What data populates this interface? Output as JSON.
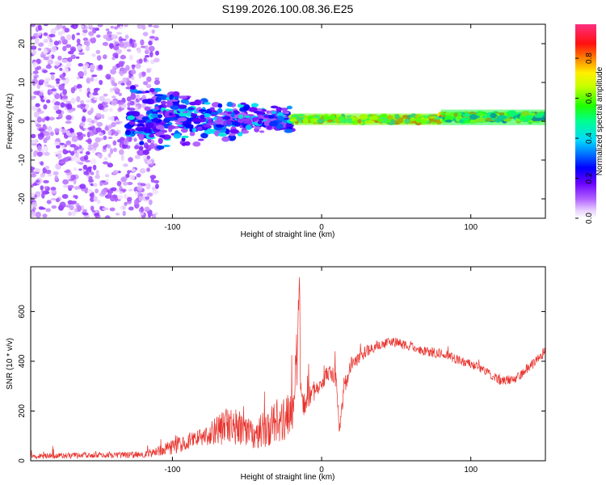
{
  "title": "S199.2026.100.08.36.E25",
  "chart_data": [
    {
      "type": "heatmap",
      "xlabel": "Height of straight line (km)",
      "ylabel": "Frequency (Hz)",
      "xlim": [
        -195,
        150
      ],
      "ylim": [
        -25,
        25
      ],
      "x_ticks": [
        -100,
        0,
        100
      ],
      "x_tick_labels": [
        "-100",
        "0",
        "100"
      ],
      "y_ticks": [
        -20,
        -10,
        0,
        10,
        20
      ],
      "y_tick_labels": [
        "-20",
        "-10",
        "0",
        "10",
        "20"
      ],
      "grid": false,
      "colorbar": {
        "label": "Normalized spectral amplitude",
        "range": [
          0,
          0.97
        ],
        "ticks": [
          0.0,
          0.2,
          0.4,
          0.6,
          0.8
        ],
        "tick_labels": [
          "0.0",
          "0.2",
          "0.4",
          "0.6",
          "0.8"
        ],
        "colormap": "rainbow (white-violet-blue-cyan-green-yellow-red-pink)"
      },
      "regions": [
        {
          "x_range": [
            -195,
            -110
          ],
          "freq_range": [
            -25,
            25
          ],
          "amplitude": [
            0.02,
            0.15
          ],
          "pattern": "scattered broadband"
        },
        {
          "x_range": [
            -130,
            -20
          ],
          "freq_range": [
            -6,
            7
          ],
          "amplitude": [
            0.1,
            0.45
          ],
          "pattern": "clustered blobs near 0 Hz"
        },
        {
          "x_range": [
            -20,
            80
          ],
          "freq_range": [
            -1,
            2
          ],
          "amplitude": [
            0.3,
            0.95
          ],
          "pattern": "narrow band at ~1 Hz"
        },
        {
          "x_range": [
            80,
            150
          ],
          "freq_range": [
            -1,
            3
          ],
          "amplitude": [
            0.2,
            0.9
          ],
          "pattern": "narrow band at ~1-2 Hz"
        }
      ]
    },
    {
      "type": "line",
      "xlabel": "Height of straight line (km)",
      "ylabel": "SNR (10 * v/v)",
      "xlim": [
        -195,
        150
      ],
      "ylim": [
        0,
        780
      ],
      "x_ticks": [
        -100,
        0,
        100
      ],
      "x_tick_labels": [
        "-100",
        "0",
        "100"
      ],
      "y_ticks": [
        0,
        200,
        400,
        600
      ],
      "y_tick_labels": [
        "0",
        "200",
        "400",
        "600"
      ],
      "grid": false,
      "series": [
        {
          "name": "SNR",
          "color": "#e8322c",
          "x": [
            -195,
            -180,
            -160,
            -140,
            -120,
            -110,
            -100,
            -90,
            -80,
            -70,
            -60,
            -50,
            -40,
            -30,
            -25,
            -20,
            -16,
            -15,
            -14,
            -12,
            -10,
            -5,
            0,
            5,
            10,
            12,
            15,
            20,
            30,
            40,
            50,
            60,
            70,
            80,
            90,
            100,
            110,
            120,
            130,
            140,
            150
          ],
          "y": [
            15,
            20,
            22,
            22,
            25,
            35,
            55,
            75,
            90,
            120,
            160,
            110,
            120,
            160,
            170,
            190,
            450,
            780,
            300,
            240,
            250,
            280,
            320,
            350,
            320,
            110,
            300,
            390,
            440,
            470,
            475,
            460,
            440,
            430,
            410,
            390,
            360,
            320,
            330,
            380,
            440
          ],
          "noise_amplitude": [
            12,
            12,
            12,
            12,
            14,
            20,
            30,
            35,
            40,
            60,
            90,
            60,
            70,
            90,
            90,
            100,
            120,
            80,
            80,
            60,
            50,
            40,
            35,
            35,
            50,
            20,
            40,
            30,
            25,
            22,
            20,
            20,
            20,
            20,
            20,
            18,
            18,
            18,
            18,
            20,
            20
          ]
        }
      ]
    }
  ]
}
